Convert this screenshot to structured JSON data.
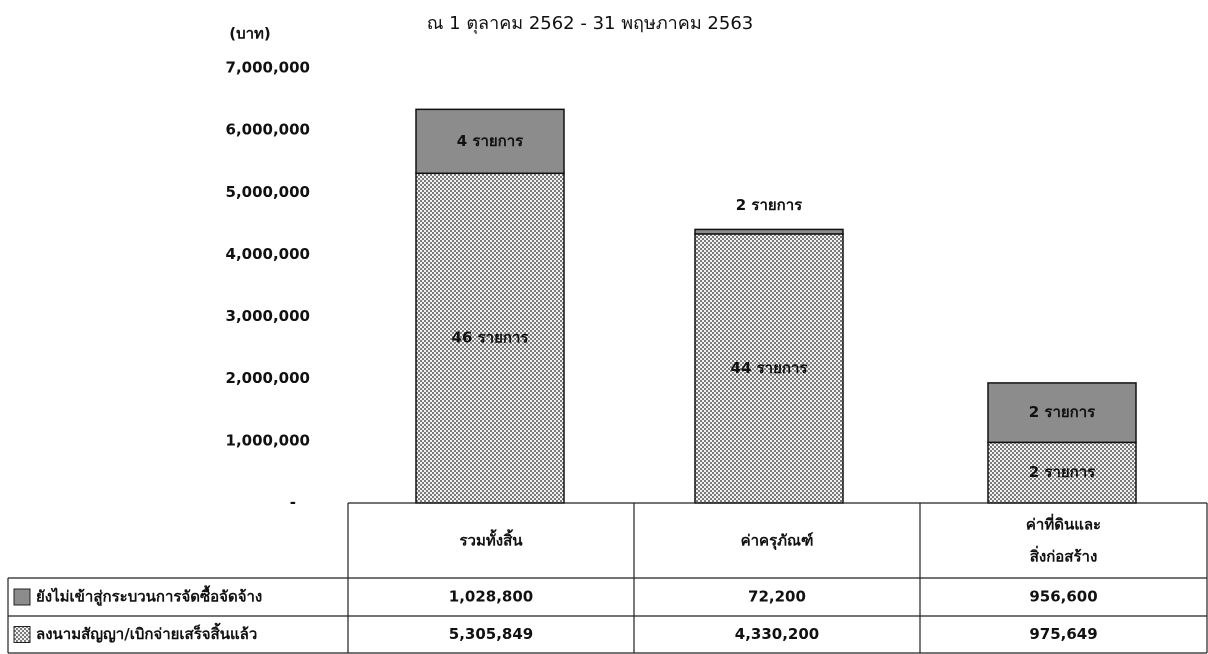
{
  "chart_data": {
    "type": "stacked_bar",
    "title": "ณ 1 ตุลาคม 2562 - 31 พฤษภาคม 2563",
    "y_label": "(บาท)",
    "categories": [
      "รวมทั้งสิ้น",
      "ค่าครุภัณฑ์",
      "ค่าที่ดินและ\nสิ่งก่อสร้าง"
    ],
    "series": [
      {
        "name": "ลงนามสัญญา/เบิกจ่ายเสร็จสิ้นแล้ว",
        "color": "#9a9a9a",
        "pattern": "checker",
        "values": [
          5305849,
          4330200,
          975649
        ],
        "value_labels": [
          "5,305,849",
          "4,330,200",
          "975,649"
        ],
        "item_labels": [
          "46 รายการ",
          "44 รายการ",
          "2 รายการ"
        ]
      },
      {
        "name": "ยังไม่เข้าสู่กระบวนการจัดซื้อจัดจ้าง",
        "color": "#8c8c8c",
        "pattern": "solid",
        "values": [
          1028800,
          72200,
          956600
        ],
        "value_labels": [
          "1,028,800",
          "72,200",
          "956,600"
        ],
        "item_labels": [
          "4 รายการ",
          "2 รายการ",
          "2 รายการ"
        ]
      }
    ],
    "table_order": [
      1,
      0
    ],
    "ylim": [
      0,
      7000000
    ],
    "yticks": [
      {
        "value": 0,
        "label": "-"
      },
      {
        "value": 1000000,
        "label": "1,000,000"
      },
      {
        "value": 2000000,
        "label": "2,000,000"
      },
      {
        "value": 3000000,
        "label": "3,000,000"
      },
      {
        "value": 4000000,
        "label": "4,000,000"
      },
      {
        "value": 5000000,
        "label": "5,000,000"
      },
      {
        "value": 6000000,
        "label": "6,000,000"
      },
      {
        "value": 7000000,
        "label": "7,000,000"
      }
    ]
  }
}
